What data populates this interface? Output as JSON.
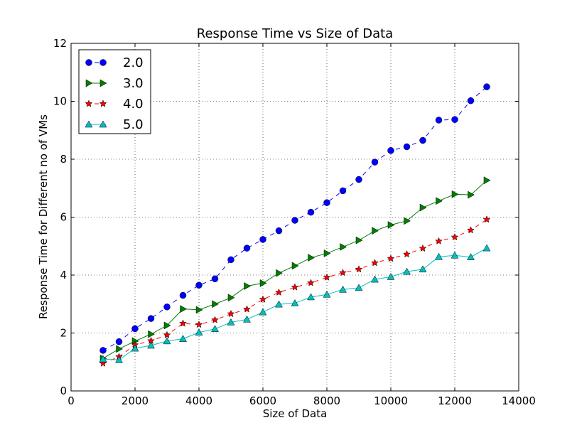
{
  "chart_data": {
    "type": "line",
    "title": "Response Time vs Size of Data",
    "xlabel": "Size of Data",
    "ylabel": "Response Time for Different no of VMs",
    "xlim": [
      0,
      14000
    ],
    "ylim": [
      0,
      12
    ],
    "x_ticks": [
      0,
      2000,
      4000,
      6000,
      8000,
      10000,
      12000,
      14000
    ],
    "y_ticks": [
      0,
      2,
      4,
      6,
      8,
      10,
      12
    ],
    "grid": true,
    "grid_style": "dotted",
    "legend_position": "top-left",
    "x": [
      1000,
      1500,
      2000,
      2500,
      3000,
      3500,
      4000,
      4500,
      5000,
      5500,
      6000,
      6500,
      7000,
      7500,
      8000,
      8500,
      9000,
      9500,
      10000,
      10500,
      11000,
      11500,
      12000,
      12500,
      13000
    ],
    "series": [
      {
        "name": "2.0",
        "color": "#0000ff",
        "marker": "circle",
        "line_style": "dashed",
        "values": [
          1.4,
          1.7,
          2.15,
          2.5,
          2.9,
          3.3,
          3.65,
          3.87,
          4.53,
          4.93,
          5.23,
          5.53,
          5.89,
          6.17,
          6.5,
          6.91,
          7.3,
          7.9,
          8.3,
          8.43,
          8.65,
          9.35,
          9.37,
          10.02,
          10.5
        ]
      },
      {
        "name": "3.0",
        "color": "#008000",
        "marker": "triangle-right",
        "line_style": "solid",
        "values": [
          1.12,
          1.45,
          1.72,
          1.96,
          2.26,
          2.83,
          2.8,
          3.0,
          3.22,
          3.62,
          3.72,
          4.07,
          4.32,
          4.6,
          4.75,
          4.97,
          5.2,
          5.53,
          5.73,
          5.87,
          6.33,
          6.56,
          6.79,
          6.77,
          7.27
        ]
      },
      {
        "name": "4.0",
        "color": "#ff0000",
        "marker": "star",
        "line_style": "dashed",
        "values": [
          0.95,
          1.18,
          1.59,
          1.73,
          1.93,
          2.33,
          2.29,
          2.45,
          2.66,
          2.82,
          3.16,
          3.4,
          3.58,
          3.73,
          3.92,
          4.08,
          4.2,
          4.42,
          4.57,
          4.72,
          4.92,
          5.17,
          5.31,
          5.55,
          5.92
        ]
      },
      {
        "name": "5.0",
        "color": "#00bfbf",
        "marker": "triangle-up",
        "line_style": "solid",
        "values": [
          1.1,
          1.07,
          1.47,
          1.57,
          1.72,
          1.8,
          2.02,
          2.14,
          2.37,
          2.47,
          2.72,
          2.99,
          3.03,
          3.24,
          3.33,
          3.5,
          3.56,
          3.85,
          3.94,
          4.12,
          4.2,
          4.63,
          4.68,
          4.62,
          4.93
        ]
      }
    ]
  }
}
